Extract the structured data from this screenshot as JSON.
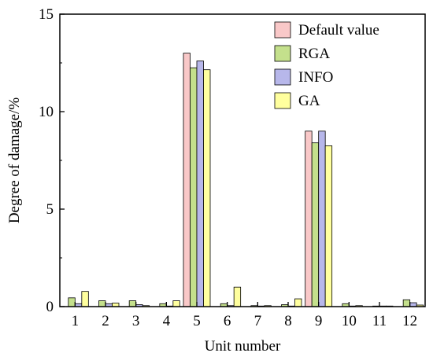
{
  "chart_data": {
    "type": "bar",
    "title": "",
    "xlabel": "Unit number",
    "ylabel": "Degree of damage/%",
    "categories": [
      "1",
      "2",
      "3",
      "4",
      "5",
      "6",
      "7",
      "8",
      "9",
      "10",
      "11",
      "12"
    ],
    "ylim": [
      0,
      15
    ],
    "yticks": [
      0,
      5,
      10,
      15
    ],
    "grid": false,
    "legend_position": "top-right",
    "series": [
      {
        "name": "Default value",
        "color": "#f9c8c8",
        "values": [
          0,
          0,
          0,
          0,
          13.0,
          0,
          0,
          0,
          9.0,
          0,
          0,
          0
        ]
      },
      {
        "name": "RGA",
        "color": "#c4e08c",
        "values": [
          0.45,
          0.3,
          0.3,
          0.15,
          12.25,
          0.15,
          0.05,
          0.1,
          8.4,
          0.15,
          0.03,
          0.35
        ]
      },
      {
        "name": "INFO",
        "color": "#b7b7ea",
        "values": [
          0.15,
          0.15,
          0.1,
          0.03,
          12.6,
          0.05,
          0.03,
          0.03,
          9.0,
          0.03,
          0.03,
          0.2
        ]
      },
      {
        "name": "GA",
        "color": "#ffff9e",
        "values": [
          0.78,
          0.18,
          0.05,
          0.3,
          12.15,
          1.0,
          0.05,
          0.4,
          8.25,
          0.05,
          0.03,
          0.08
        ]
      }
    ]
  }
}
